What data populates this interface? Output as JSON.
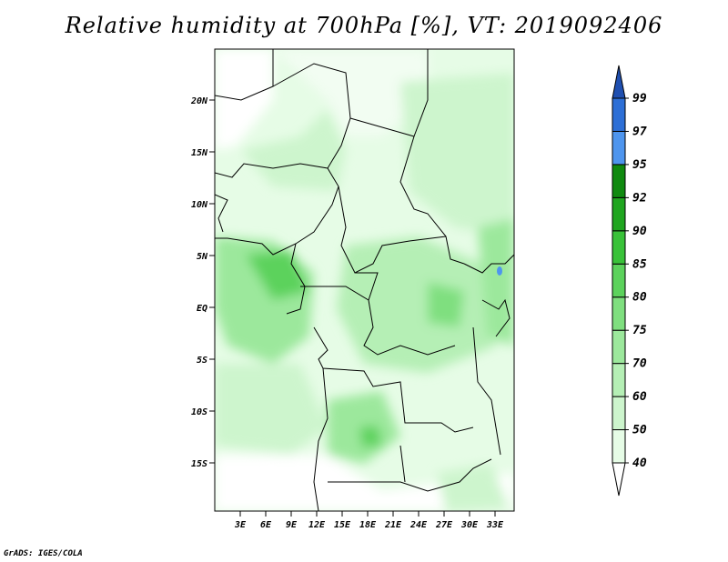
{
  "title": "Relative humidity at 700hPa [%], VT: 2019092406",
  "credit": "GrADS: IGES/COLA",
  "map": {
    "lat_labels": [
      "20N",
      "15N",
      "10N",
      "5N",
      "EQ",
      "5S",
      "10S",
      "15S"
    ],
    "lon_labels": [
      "3E",
      "6E",
      "9E",
      "12E",
      "15E",
      "18E",
      "21E",
      "24E",
      "27E",
      "30E",
      "33E"
    ]
  },
  "colorbar": {
    "levels": [
      "40",
      "50",
      "60",
      "70",
      "75",
      "80",
      "85",
      "90",
      "92",
      "95",
      "97",
      "99"
    ],
    "colors": [
      "#ffffff",
      "#e6fce6",
      "#cdf5cd",
      "#b5efb5",
      "#9ce89c",
      "#7fdf7f",
      "#5cd25c",
      "#39c239",
      "#1fa51f",
      "#0f8a0f",
      "#4e95ee",
      "#2d6fd6",
      "#1f4fb0"
    ]
  }
}
